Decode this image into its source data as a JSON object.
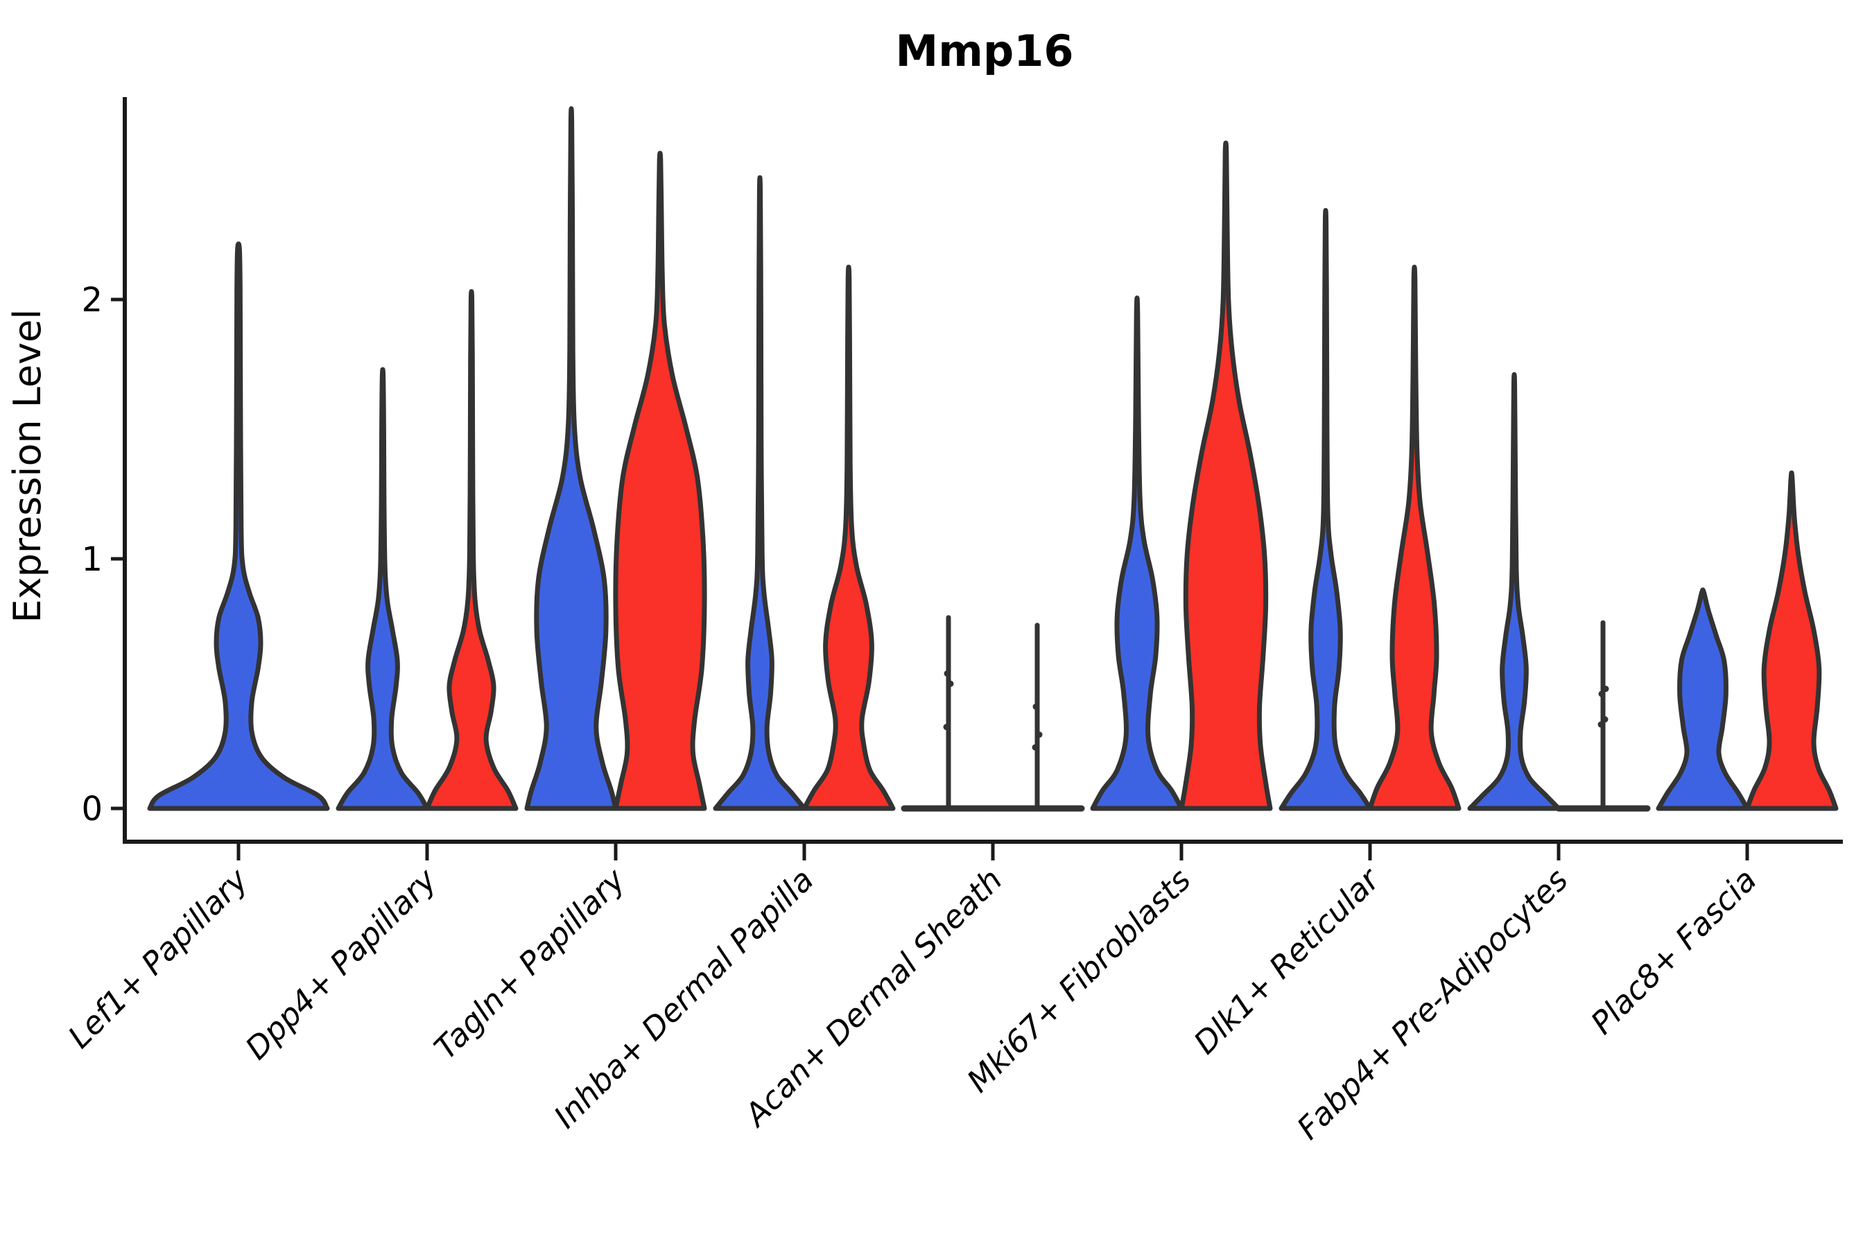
{
  "chart_data": {
    "type": "violin",
    "subtype": "split-violin-expression",
    "title": "Mmp16",
    "xlabel": "",
    "ylabel": "Expression Level",
    "yticks": [
      "0",
      "1",
      "2"
    ],
    "ylim": [
      0,
      2.9
    ],
    "grid": false,
    "legend_position": "none",
    "colors": {
      "blue": "#3E63E2",
      "red": "#F93128",
      "outline": "#333333",
      "axis": "#1a1a1a"
    },
    "categories": [
      "Lef1+ Papillary",
      "Dpp4+ Papillary",
      "Tagln+ Papillary",
      "Inhba+ Dermal Papilla",
      "Acan+ Dermal Sheath",
      "Mki67+ Fibroblasts",
      "Dlk1+ Reticular",
      "Fabp4+ Pre-Adipocytes",
      "Plac8+ Fascia"
    ],
    "groups": [
      {
        "category": "Lef1+ Papillary",
        "violins": [
          {
            "side": "blue",
            "type": "violin",
            "single": true,
            "max": 2.2,
            "profile": [
              [
                0,
                1
              ],
              [
                0.05,
                0.9
              ],
              [
                0.12,
                0.52
              ],
              [
                0.2,
                0.26
              ],
              [
                0.3,
                0.15
              ],
              [
                0.42,
                0.15
              ],
              [
                0.55,
                0.22
              ],
              [
                0.65,
                0.25
              ],
              [
                0.75,
                0.22
              ],
              [
                0.85,
                0.12
              ],
              [
                0.95,
                0.05
              ],
              [
                1.1,
                0.03
              ],
              [
                1.6,
                0.022
              ],
              [
                2.05,
                0.018
              ],
              [
                2.2,
                0.01
              ]
            ]
          }
        ]
      },
      {
        "category": "Dpp4+ Papillary",
        "violins": [
          {
            "side": "blue",
            "type": "violin",
            "max": 1.7,
            "profile": [
              [
                0,
                1
              ],
              [
                0.06,
                0.8
              ],
              [
                0.14,
                0.42
              ],
              [
                0.24,
                0.22
              ],
              [
                0.35,
                0.2
              ],
              [
                0.48,
                0.3
              ],
              [
                0.58,
                0.33
              ],
              [
                0.7,
                0.22
              ],
              [
                0.82,
                0.1
              ],
              [
                0.95,
                0.05
              ],
              [
                1.2,
                0.03
              ],
              [
                1.5,
                0.022
              ],
              [
                1.7,
                0.01
              ]
            ]
          },
          {
            "side": "red",
            "type": "violin",
            "max": 2.0,
            "profile": [
              [
                0,
                1
              ],
              [
                0.07,
                0.82
              ],
              [
                0.16,
                0.5
              ],
              [
                0.27,
                0.33
              ],
              [
                0.38,
                0.44
              ],
              [
                0.48,
                0.5
              ],
              [
                0.58,
                0.38
              ],
              [
                0.7,
                0.18
              ],
              [
                0.82,
                0.08
              ],
              [
                1.0,
                0.04
              ],
              [
                1.4,
                0.026
              ],
              [
                1.75,
                0.02
              ],
              [
                2.0,
                0.01
              ]
            ]
          }
        ]
      },
      {
        "category": "Tagln+ Papillary",
        "violins": [
          {
            "side": "blue",
            "type": "violin",
            "max": 2.7,
            "profile": [
              [
                0,
                1
              ],
              [
                0.07,
                0.9
              ],
              [
                0.18,
                0.7
              ],
              [
                0.32,
                0.56
              ],
              [
                0.5,
                0.68
              ],
              [
                0.7,
                0.78
              ],
              [
                0.9,
                0.74
              ],
              [
                1.1,
                0.5
              ],
              [
                1.3,
                0.2
              ],
              [
                1.5,
                0.07
              ],
              [
                1.8,
                0.035
              ],
              [
                2.3,
                0.025
              ],
              [
                2.7,
                0.01
              ]
            ]
          },
          {
            "side": "red",
            "type": "violin",
            "max": 2.55,
            "profile": [
              [
                0,
                1
              ],
              [
                0.1,
                0.88
              ],
              [
                0.22,
                0.74
              ],
              [
                0.35,
                0.78
              ],
              [
                0.55,
                0.94
              ],
              [
                0.8,
                1.0
              ],
              [
                1.05,
                0.97
              ],
              [
                1.3,
                0.84
              ],
              [
                1.5,
                0.58
              ],
              [
                1.7,
                0.28
              ],
              [
                1.9,
                0.1
              ],
              [
                2.1,
                0.05
              ],
              [
                2.35,
                0.03
              ],
              [
                2.55,
                0.012
              ]
            ]
          }
        ]
      },
      {
        "category": "Inhba+ Dermal Papilla",
        "violins": [
          {
            "side": "blue",
            "type": "violin",
            "max": 2.42,
            "profile": [
              [
                0,
                1
              ],
              [
                0.06,
                0.72
              ],
              [
                0.13,
                0.38
              ],
              [
                0.22,
                0.2
              ],
              [
                0.32,
                0.16
              ],
              [
                0.45,
                0.24
              ],
              [
                0.58,
                0.27
              ],
              [
                0.7,
                0.2
              ],
              [
                0.85,
                0.09
              ],
              [
                1.0,
                0.05
              ],
              [
                1.45,
                0.028
              ],
              [
                1.95,
                0.022
              ],
              [
                2.42,
                0.01
              ]
            ]
          },
          {
            "side": "red",
            "type": "violin",
            "max": 2.08,
            "profile": [
              [
                0,
                1
              ],
              [
                0.07,
                0.78
              ],
              [
                0.15,
                0.48
              ],
              [
                0.25,
                0.34
              ],
              [
                0.35,
                0.3
              ],
              [
                0.5,
                0.46
              ],
              [
                0.65,
                0.52
              ],
              [
                0.8,
                0.4
              ],
              [
                0.95,
                0.18
              ],
              [
                1.1,
                0.07
              ],
              [
                1.35,
                0.035
              ],
              [
                1.7,
                0.025
              ],
              [
                2.08,
                0.012
              ]
            ]
          }
        ]
      },
      {
        "category": "Acan+ Dermal Sheath",
        "violins": [
          {
            "side": "blue",
            "type": "line",
            "max": 0.75,
            "jitter": [
              0.32,
              0.49,
              0.53
            ]
          },
          {
            "side": "red",
            "type": "line",
            "max": 0.72,
            "jitter": [
              0.24,
              0.29,
              0.4
            ]
          }
        ]
      },
      {
        "category": "Mki67+ Fibroblasts",
        "violins": [
          {
            "side": "blue",
            "type": "violin",
            "max": 1.95,
            "profile": [
              [
                0,
                1
              ],
              [
                0.07,
                0.78
              ],
              [
                0.15,
                0.45
              ],
              [
                0.28,
                0.25
              ],
              [
                0.45,
                0.3
              ],
              [
                0.6,
                0.42
              ],
              [
                0.75,
                0.45
              ],
              [
                0.9,
                0.35
              ],
              [
                1.05,
                0.16
              ],
              [
                1.2,
                0.07
              ],
              [
                1.5,
                0.035
              ],
              [
                1.95,
                0.012
              ]
            ]
          },
          {
            "side": "red",
            "type": "violin",
            "max": 2.58,
            "profile": [
              [
                0,
                1
              ],
              [
                0.1,
                0.9
              ],
              [
                0.25,
                0.78
              ],
              [
                0.4,
                0.76
              ],
              [
                0.6,
                0.84
              ],
              [
                0.8,
                0.9
              ],
              [
                1.0,
                0.87
              ],
              [
                1.2,
                0.74
              ],
              [
                1.4,
                0.54
              ],
              [
                1.6,
                0.3
              ],
              [
                1.8,
                0.14
              ],
              [
                2.0,
                0.06
              ],
              [
                2.3,
                0.03
              ],
              [
                2.58,
                0.012
              ]
            ]
          }
        ]
      },
      {
        "category": "Dlk1+ Reticular",
        "violins": [
          {
            "side": "blue",
            "type": "violin",
            "max": 2.3,
            "profile": [
              [
                0,
                1
              ],
              [
                0.06,
                0.78
              ],
              [
                0.14,
                0.44
              ],
              [
                0.25,
                0.22
              ],
              [
                0.4,
                0.2
              ],
              [
                0.55,
                0.3
              ],
              [
                0.7,
                0.33
              ],
              [
                0.85,
                0.25
              ],
              [
                1.0,
                0.12
              ],
              [
                1.15,
                0.05
              ],
              [
                1.5,
                0.03
              ],
              [
                1.9,
                0.022
              ],
              [
                2.3,
                0.01
              ]
            ]
          },
          {
            "side": "red",
            "type": "violin",
            "max": 2.08,
            "profile": [
              [
                0,
                1
              ],
              [
                0.08,
                0.84
              ],
              [
                0.18,
                0.55
              ],
              [
                0.3,
                0.38
              ],
              [
                0.45,
                0.44
              ],
              [
                0.6,
                0.5
              ],
              [
                0.8,
                0.45
              ],
              [
                1.0,
                0.3
              ],
              [
                1.2,
                0.13
              ],
              [
                1.4,
                0.06
              ],
              [
                1.7,
                0.032
              ],
              [
                2.08,
                0.012
              ]
            ]
          }
        ]
      },
      {
        "category": "Fabp4+ Pre-Adipocytes",
        "violins": [
          {
            "side": "blue",
            "type": "violin",
            "max": 1.66,
            "profile": [
              [
                0,
                1
              ],
              [
                0.05,
                0.72
              ],
              [
                0.12,
                0.34
              ],
              [
                0.2,
                0.16
              ],
              [
                0.3,
                0.14
              ],
              [
                0.42,
                0.23
              ],
              [
                0.55,
                0.27
              ],
              [
                0.68,
                0.19
              ],
              [
                0.8,
                0.09
              ],
              [
                0.95,
                0.045
              ],
              [
                1.3,
                0.025
              ],
              [
                1.66,
                0.01
              ]
            ]
          },
          {
            "side": "red",
            "type": "line",
            "max": 0.73,
            "jitter": [
              0.33,
              0.35,
              0.45,
              0.47
            ]
          }
        ]
      },
      {
        "category": "Plac8+ Fascia",
        "violins": [
          {
            "side": "blue",
            "type": "violin",
            "max": 0.85,
            "profile": [
              [
                0,
                1
              ],
              [
                0.06,
                0.8
              ],
              [
                0.14,
                0.5
              ],
              [
                0.22,
                0.36
              ],
              [
                0.32,
                0.44
              ],
              [
                0.45,
                0.52
              ],
              [
                0.58,
                0.48
              ],
              [
                0.68,
                0.3
              ],
              [
                0.78,
                0.12
              ],
              [
                0.85,
                0.02
              ]
            ]
          },
          {
            "side": "red",
            "type": "violin",
            "max": 1.3,
            "profile": [
              [
                0,
                1
              ],
              [
                0.07,
                0.85
              ],
              [
                0.16,
                0.6
              ],
              [
                0.26,
                0.5
              ],
              [
                0.4,
                0.58
              ],
              [
                0.55,
                0.62
              ],
              [
                0.7,
                0.5
              ],
              [
                0.85,
                0.3
              ],
              [
                1.0,
                0.15
              ],
              [
                1.15,
                0.06
              ],
              [
                1.3,
                0.012
              ]
            ]
          }
        ]
      }
    ]
  }
}
